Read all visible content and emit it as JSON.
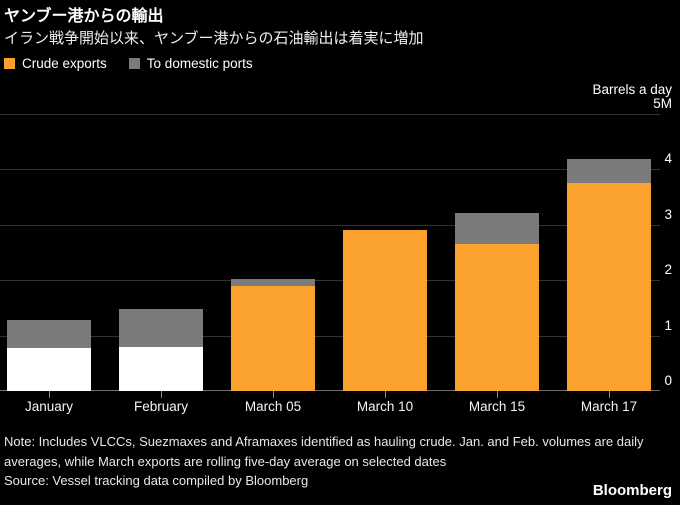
{
  "header": {
    "title": "ヤンブー港からの輸出",
    "subtitle": "イラン戦争開始以来、ヤンブー港からの石油輸出は着実に増加"
  },
  "legend": {
    "items": [
      {
        "label": "Crude exports",
        "color": "#FAA12E"
      },
      {
        "label": "To domestic ports",
        "color": "#7B7B7B"
      }
    ]
  },
  "axis": {
    "title": "Barrels a day"
  },
  "chart_data": {
    "type": "bar",
    "stacked": true,
    "title": "ヤンブー港からの輸出",
    "subtitle": "イラン戦争開始以来、ヤンブー港からの石油輸出は着実に増加",
    "unit": "million barrels a day",
    "categories": [
      "January",
      "February",
      "March 05",
      "March 10",
      "March 15",
      "March 17"
    ],
    "series": [
      {
        "name": "Crude exports",
        "color": "#FAA12E",
        "values": [
          0.78,
          0.8,
          1.89,
          2.91,
          2.66,
          3.76
        ],
        "bar_colors": [
          "#FFFFFF",
          "#FFFFFF",
          "#FAA12E",
          "#FAA12E",
          "#FAA12E",
          "#FAA12E"
        ]
      },
      {
        "name": "To domestic ports",
        "color": "#7B7B7B",
        "values": [
          0.5,
          0.68,
          0.13,
          0.0,
          0.55,
          0.42
        ]
      }
    ],
    "totals": [
      1.28,
      1.48,
      2.02,
      2.91,
      3.21,
      4.18
    ],
    "ylabel": "Barrels a day",
    "ylim": [
      0,
      5
    ],
    "yticks": [
      0,
      1,
      2,
      3,
      4,
      5
    ],
    "ytick_labels": [
      "0",
      "1",
      "2",
      "3",
      "4",
      "5M"
    ],
    "grid": true,
    "legend_position": "top-left",
    "colors": {
      "background": "#000000",
      "gridline": "#333333",
      "baseline": "#6E6E6E",
      "highlight_bars_jan_feb": "#FFFFFF"
    }
  },
  "footer": {
    "note": "Note: Includes VLCCs, Suezmaxes and Aframaxes identified as hauling crude. Jan. and Feb. volumes are daily averages, while March exports are rolling five-day average on selected dates",
    "source": "Source: Vessel tracking data compiled by Bloomberg",
    "logo": "Bloomberg"
  }
}
